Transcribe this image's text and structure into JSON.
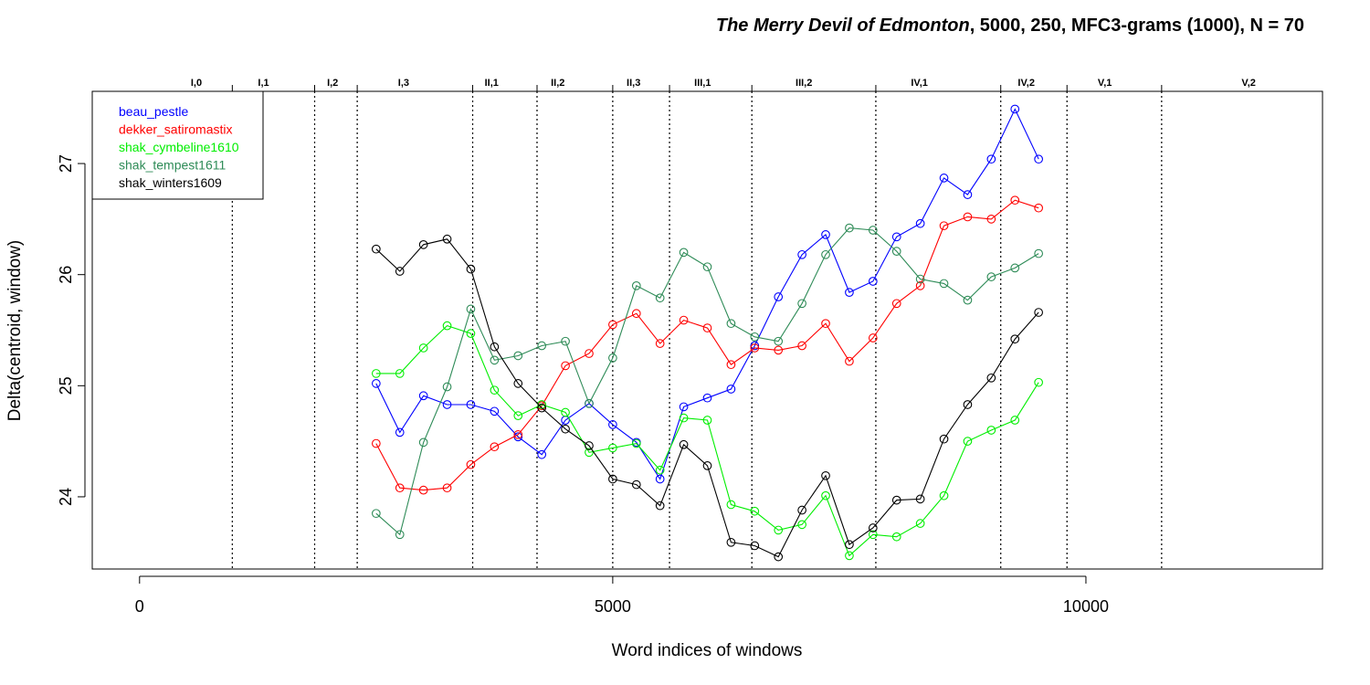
{
  "chart_data": {
    "type": "line",
    "title": {
      "italic": "The Merry Devil of Edmonton",
      "rest": ", 5000, 250, MFC3-grams (1000), N = 70"
    },
    "xlabel": "Word indices of windows",
    "ylabel": "Delta(centroid, window)",
    "xlim": [
      -500,
      12500
    ],
    "ylim": [
      23.35,
      27.65
    ],
    "x_ticks": [
      0,
      5000,
      10000
    ],
    "y_ticks": [
      24,
      25,
      26,
      27
    ],
    "legend_position": "top-left",
    "scene_boundaries": [
      980,
      1850,
      2300,
      3520,
      4200,
      5000,
      5600,
      6470,
      7780,
      9100,
      9800,
      10800
    ],
    "scene_labels": [
      {
        "label": "I,0",
        "x": 600
      },
      {
        "label": "I,1",
        "x": 1310
      },
      {
        "label": "I,2",
        "x": 2040
      },
      {
        "label": "I,3",
        "x": 2790
      },
      {
        "label": "II,1",
        "x": 3720
      },
      {
        "label": "II,2",
        "x": 4420
      },
      {
        "label": "II,3",
        "x": 5220
      },
      {
        "label": "III,1",
        "x": 5950
      },
      {
        "label": "III,2",
        "x": 7020
      },
      {
        "label": "IV,1",
        "x": 8240
      },
      {
        "label": "IV,2",
        "x": 9370
      },
      {
        "label": "V,1",
        "x": 10200
      },
      {
        "label": "V,2",
        "x": 11720
      }
    ],
    "x": [
      2500,
      2750,
      3000,
      3250,
      3500,
      3750,
      4000,
      4250,
      4500,
      4750,
      5000,
      5250,
      5500,
      5750,
      6000,
      6250,
      6500,
      6750,
      7000,
      7250,
      7500,
      7750,
      8000,
      8250,
      8500,
      8750,
      9000,
      9250,
      9500
    ],
    "series": [
      {
        "name": "beau_pestle",
        "color": "#0000ff",
        "values": [
          25.02,
          24.58,
          24.91,
          24.83,
          24.83,
          24.77,
          24.54,
          24.38,
          24.69,
          24.84,
          24.65,
          24.49,
          24.16,
          24.81,
          24.89,
          24.97,
          25.36,
          25.8,
          26.18,
          26.36,
          25.84,
          25.94,
          26.34,
          26.46,
          26.87,
          26.72,
          27.04,
          27.49,
          27.04
        ]
      },
      {
        "name": "dekker_satiromastix",
        "color": "#ff0000",
        "values": [
          24.48,
          24.08,
          24.06,
          24.08,
          24.29,
          24.45,
          24.56,
          24.82,
          25.18,
          25.29,
          25.55,
          25.65,
          25.38,
          25.59,
          25.52,
          25.19,
          25.34,
          25.32,
          25.36,
          25.56,
          25.22,
          25.43,
          25.74,
          25.9,
          26.44,
          26.52,
          26.5,
          26.67,
          26.6
        ]
      },
      {
        "name": "shak_cymbeline1610",
        "color": "#00ee00",
        "values": [
          25.11,
          25.11,
          25.34,
          25.54,
          25.47,
          24.96,
          24.73,
          24.83,
          24.76,
          24.4,
          24.44,
          24.48,
          24.24,
          24.71,
          24.69,
          23.93,
          23.87,
          23.7,
          23.75,
          24.01,
          23.47,
          23.66,
          23.64,
          23.76,
          24.01,
          24.5,
          24.6,
          24.69,
          25.03
        ]
      },
      {
        "name": "shak_tempest1611",
        "color": "#2e8b57",
        "values": [
          23.85,
          23.66,
          24.49,
          24.99,
          25.69,
          25.23,
          25.27,
          25.36,
          25.4,
          24.84,
          25.25,
          25.9,
          25.79,
          26.2,
          26.07,
          25.56,
          25.44,
          25.4,
          25.74,
          26.18,
          26.42,
          26.4,
          26.21,
          25.96,
          25.92,
          25.77,
          25.98,
          26.06,
          26.19
        ]
      },
      {
        "name": "shak_winters1609",
        "color": "#000000",
        "values": [
          26.23,
          26.03,
          26.27,
          26.32,
          26.05,
          25.35,
          25.02,
          24.8,
          24.61,
          24.46,
          24.16,
          24.11,
          23.92,
          24.47,
          24.28,
          23.59,
          23.56,
          23.46,
          23.88,
          24.19,
          23.57,
          23.72,
          23.97,
          23.98,
          24.52,
          24.83,
          25.07,
          25.42,
          25.66
        ]
      }
    ]
  }
}
